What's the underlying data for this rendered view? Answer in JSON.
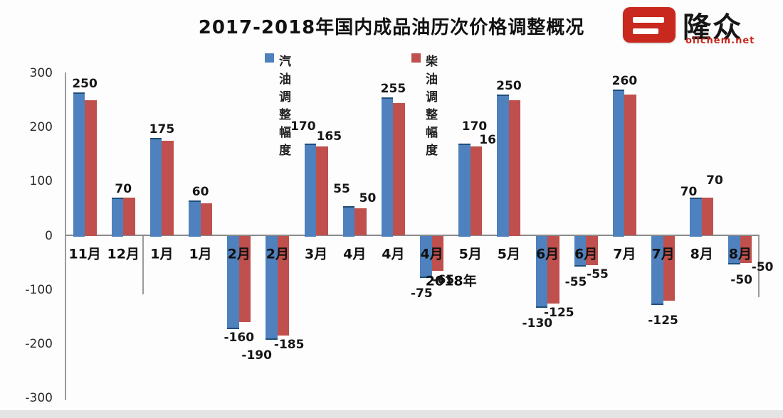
{
  "header": {
    "title": "2017-2018年国内成品油历次价格调整概况"
  },
  "logo": {
    "name": "隆众",
    "domain": "oilchem.net",
    "red": "#c8281e"
  },
  "legend": {
    "items": [
      {
        "label": "汽油调整幅度",
        "color": "#4E81BD"
      },
      {
        "label": "柴油调整幅度",
        "color": "#C0504D"
      }
    ]
  },
  "chart_data": {
    "type": "bar",
    "title": "2017-2018年国内成品油历次价格调整概况",
    "xlabel": "",
    "ylabel": "",
    "ylim": [
      -300,
      300
    ],
    "yticks": [
      300,
      200,
      100,
      0,
      -100,
      -200,
      -300
    ],
    "grid": false,
    "legend_position": "top",
    "categories": [
      "11月",
      "12月",
      "1月",
      "1月",
      "2月",
      "2月",
      "3月",
      "4月",
      "4月",
      "4月",
      "5月",
      "5月",
      "6月",
      "6月",
      "7月",
      "7月",
      "8月",
      "8月"
    ],
    "year_divider_after_category_index": 1,
    "year_label": "2018年",
    "series": [
      {
        "name": "汽油调整幅度",
        "color": "#4E81BD",
        "values": [
          265,
          70,
          180,
          65,
          -170,
          -190,
          170,
          55,
          255,
          -75,
          170,
          260,
          -130,
          -55,
          270,
          -125,
          70,
          -50
        ]
      },
      {
        "name": "柴油调整幅度",
        "color": "#C0504D",
        "values": [
          250,
          70,
          175,
          60,
          -160,
          -185,
          165,
          50,
          245,
          -65,
          165,
          250,
          -125,
          -55,
          260,
          -120,
          70,
          -50
        ]
      }
    ],
    "shown_labels": [
      {
        "pair": "250",
        "gas": null,
        "diesel": null
      },
      {
        "pair": "70",
        "gas": null,
        "diesel": null
      },
      {
        "pair": "175",
        "gas": null,
        "diesel": null
      },
      {
        "pair": "60",
        "gas": null,
        "diesel": null
      },
      {
        "pair": "-160",
        "gas": null,
        "diesel": null
      },
      {
        "pair": null,
        "gas": "-190",
        "diesel": "-185"
      },
      {
        "pair": null,
        "gas": "170",
        "diesel": "165"
      },
      {
        "pair": null,
        "gas": "55",
        "diesel": "50"
      },
      {
        "pair": "255",
        "gas": null,
        "diesel": null
      },
      {
        "pair": null,
        "gas": "-75",
        "diesel": "-65"
      },
      {
        "pair": null,
        "gas": "170",
        "diesel": "165"
      },
      {
        "pair": "250",
        "gas": null,
        "diesel": null
      },
      {
        "pair": null,
        "gas": "-130",
        "diesel": "-125"
      },
      {
        "pair": null,
        "gas": "-55",
        "diesel": "-55"
      },
      {
        "pair": "260",
        "gas": null,
        "diesel": null
      },
      {
        "pair": "-125",
        "gas": null,
        "diesel": null
      },
      {
        "pair": null,
        "gas": "70",
        "diesel": "70"
      },
      {
        "pair": null,
        "gas": "-50",
        "diesel": "-50"
      }
    ]
  }
}
